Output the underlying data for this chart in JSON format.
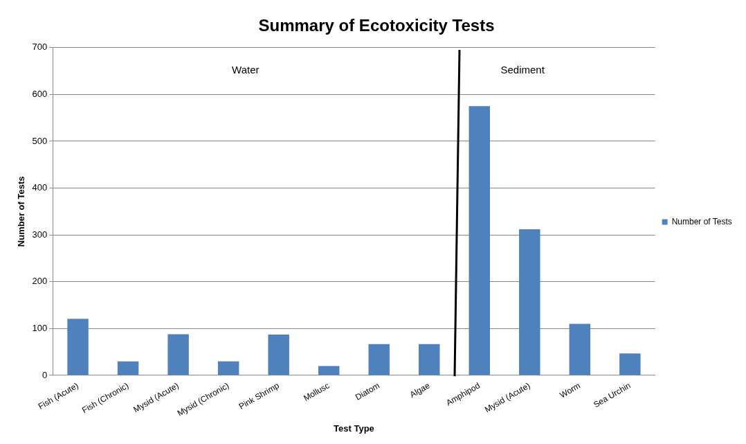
{
  "chart_data": {
    "type": "bar",
    "title": "Summary of Ecotoxicity Tests",
    "xlabel": "Test Type",
    "ylabel": "Number of Tests",
    "categories": [
      "Fish (Acute)",
      "Fish (Chronic)",
      "Mysid (Acute)",
      "Mysid (Chronic)",
      "Pink Shrimp",
      "Mollusc",
      "Diatom",
      "Algae",
      "Amphipod",
      "Mysid (Acute)",
      "Worm",
      "Sea Urchin"
    ],
    "series": [
      {
        "name": "Number of Tests",
        "color": "#4f81bd",
        "values": [
          121,
          30,
          88,
          30,
          87,
          20,
          67,
          67,
          575,
          312,
          110,
          47
        ]
      }
    ],
    "ylim": [
      0,
      700
    ],
    "yticks": [
      0,
      100,
      200,
      300,
      400,
      500,
      600,
      700
    ],
    "grid": "y",
    "legend": "right",
    "annotations": [
      "Water",
      "Sediment"
    ]
  }
}
